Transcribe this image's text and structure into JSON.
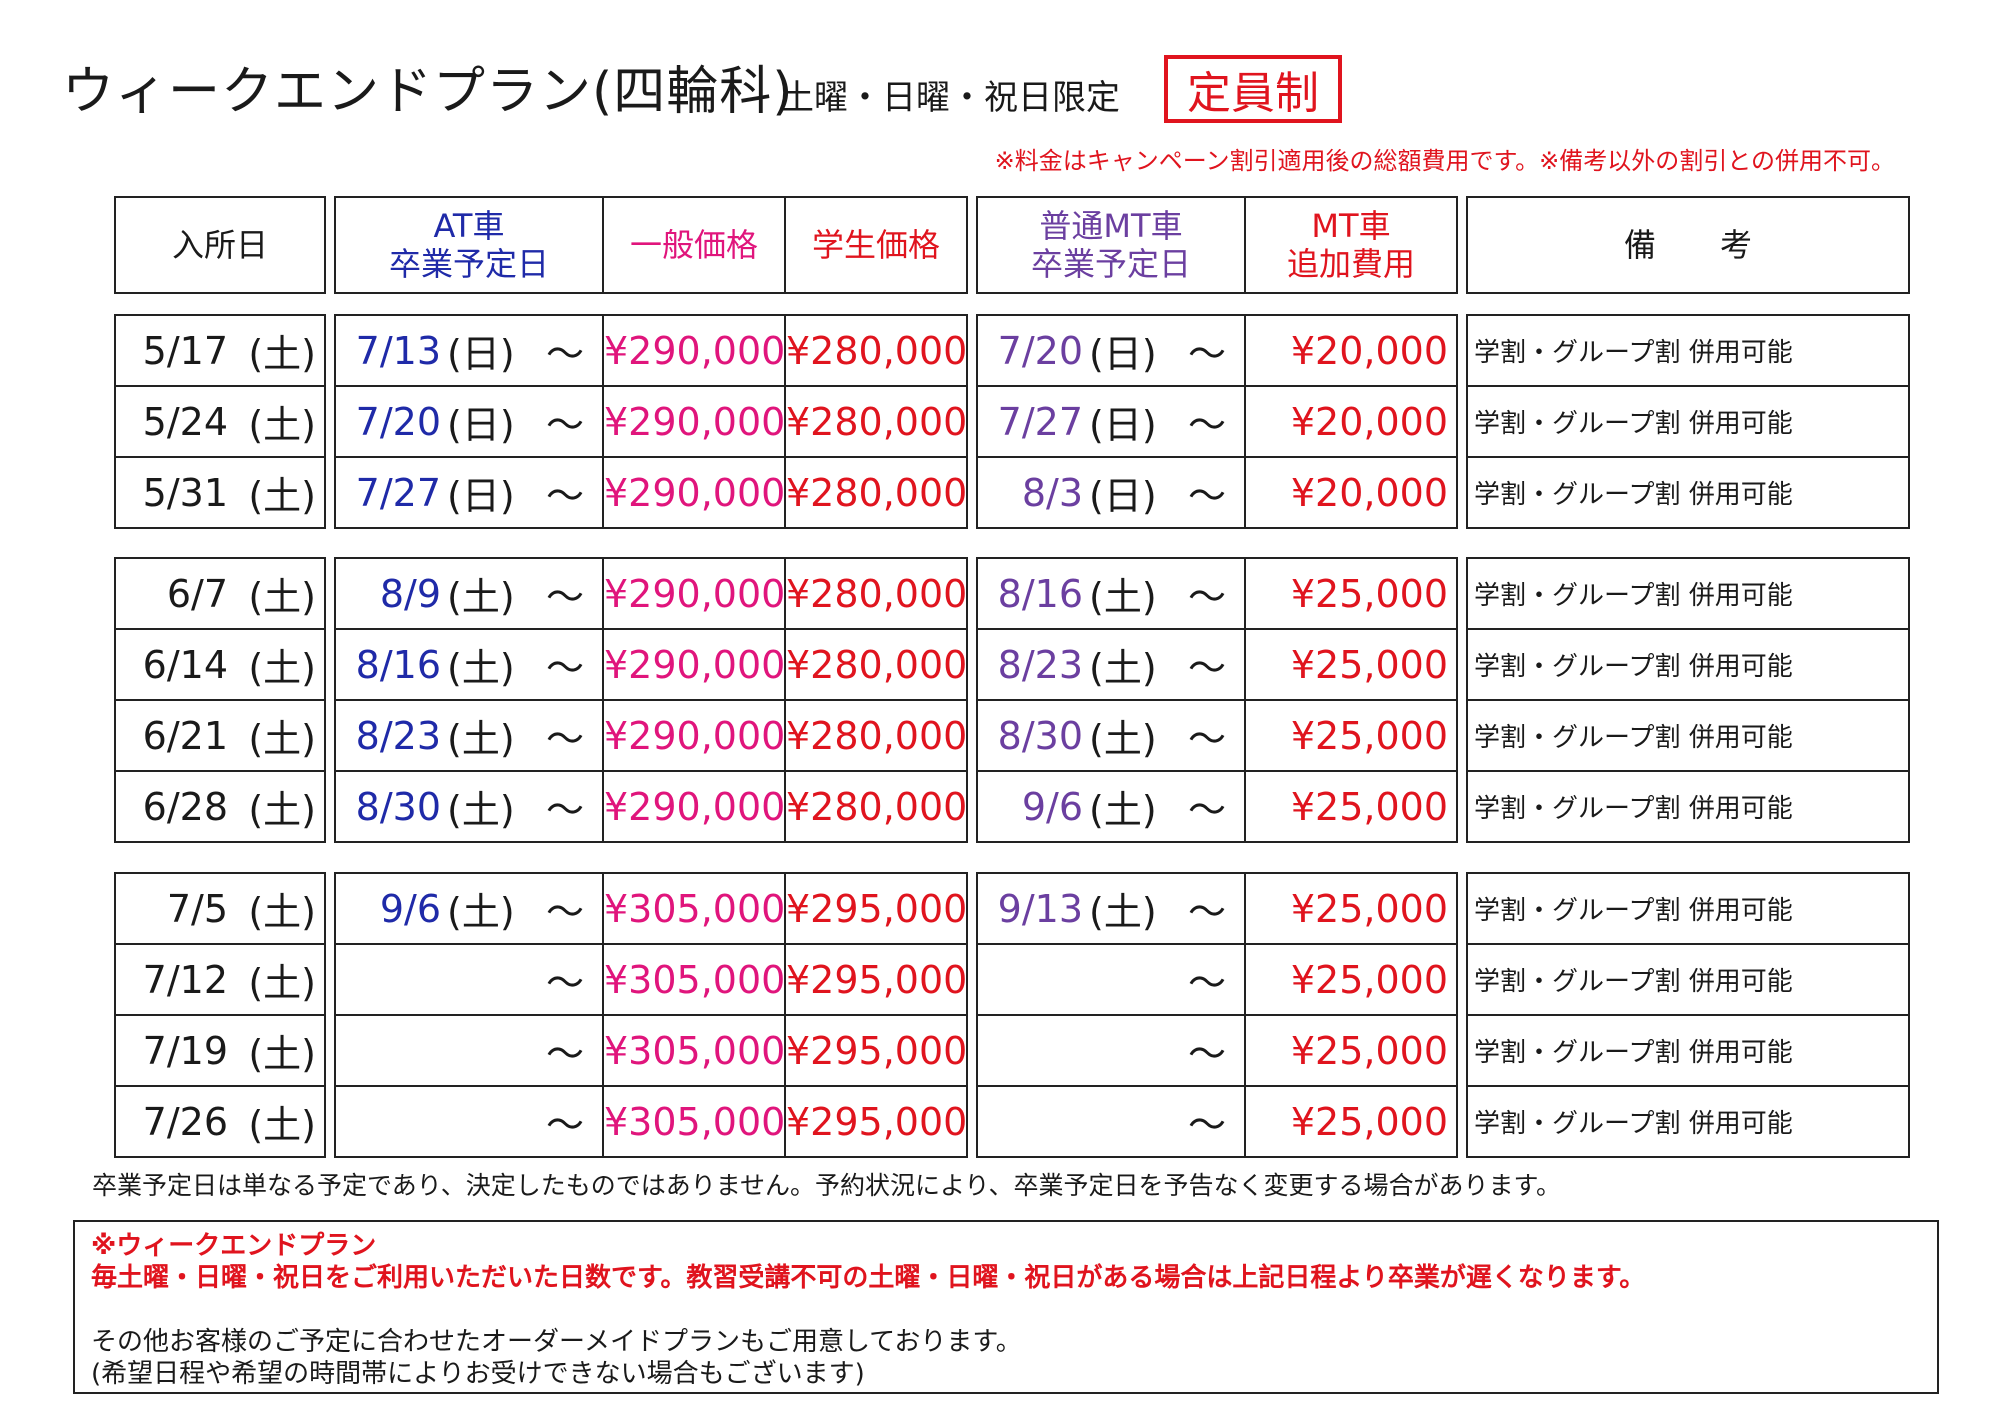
{
  "header": {
    "title": "ウィークエンドプラン(四輪科)",
    "subtitle": "土曜・日曜・祝日限定",
    "capacity_label": "定員制",
    "price_note": "※料金はキャンペーン割引適用後の総額費用です。※備考以外の割引との併用不可。"
  },
  "columns": {
    "entry": "入所日",
    "at_line1": "AT車",
    "at_line2": "卒業予定日",
    "general_price": "一般価格",
    "student_price": "学生価格",
    "mt_line1": "普通MT車",
    "mt_line2": "卒業予定日",
    "mtfee_line1": "MT車",
    "mtfee_line2": "追加費用",
    "remarks": "備　　考"
  },
  "rows": [
    {
      "entry": "5/17",
      "entry_dow": "(土)",
      "at": "7/13",
      "at_dow": "(日)",
      "tilde": "～",
      "general": "¥290,000",
      "student": "¥280,000",
      "mt": "7/20",
      "mt_dow": "(日)",
      "mt_fee": "¥20,000",
      "remark": "学割・グループ割 併用可能"
    },
    {
      "entry": "5/24",
      "entry_dow": "(土)",
      "at": "7/20",
      "at_dow": "(日)",
      "tilde": "～",
      "general": "¥290,000",
      "student": "¥280,000",
      "mt": "7/27",
      "mt_dow": "(日)",
      "mt_fee": "¥20,000",
      "remark": "学割・グループ割 併用可能"
    },
    {
      "entry": "5/31",
      "entry_dow": "(土)",
      "at": "7/27",
      "at_dow": "(日)",
      "tilde": "～",
      "general": "¥290,000",
      "student": "¥280,000",
      "mt": "8/3",
      "mt_dow": "(日)",
      "mt_fee": "¥20,000",
      "remark": "学割・グループ割 併用可能"
    },
    {
      "entry": "6/7",
      "entry_dow": "(土)",
      "at": "8/9",
      "at_dow": "(土)",
      "tilde": "～",
      "general": "¥290,000",
      "student": "¥280,000",
      "mt": "8/16",
      "mt_dow": "(土)",
      "mt_fee": "¥25,000",
      "remark": "学割・グループ割 併用可能"
    },
    {
      "entry": "6/14",
      "entry_dow": "(土)",
      "at": "8/16",
      "at_dow": "(土)",
      "tilde": "～",
      "general": "¥290,000",
      "student": "¥280,000",
      "mt": "8/23",
      "mt_dow": "(土)",
      "mt_fee": "¥25,000",
      "remark": "学割・グループ割 併用可能"
    },
    {
      "entry": "6/21",
      "entry_dow": "(土)",
      "at": "8/23",
      "at_dow": "(土)",
      "tilde": "～",
      "general": "¥290,000",
      "student": "¥280,000",
      "mt": "8/30",
      "mt_dow": "(土)",
      "mt_fee": "¥25,000",
      "remark": "学割・グループ割 併用可能"
    },
    {
      "entry": "6/28",
      "entry_dow": "(土)",
      "at": "8/30",
      "at_dow": "(土)",
      "tilde": "～",
      "general": "¥290,000",
      "student": "¥280,000",
      "mt": "9/6",
      "mt_dow": "(土)",
      "mt_fee": "¥25,000",
      "remark": "学割・グループ割 併用可能"
    },
    {
      "entry": "7/5",
      "entry_dow": "(土)",
      "at": "9/6",
      "at_dow": "(土)",
      "tilde": "～",
      "general": "¥305,000",
      "student": "¥295,000",
      "mt": "9/13",
      "mt_dow": "(土)",
      "mt_fee": "¥25,000",
      "remark": "学割・グループ割 併用可能"
    },
    {
      "entry": "7/12",
      "entry_dow": "(土)",
      "at": "",
      "at_dow": "",
      "tilde": "～",
      "general": "¥305,000",
      "student": "¥295,000",
      "mt": "",
      "mt_dow": "",
      "mt_fee": "¥25,000",
      "remark": "学割・グループ割 併用可能"
    },
    {
      "entry": "7/19",
      "entry_dow": "(土)",
      "at": "",
      "at_dow": "",
      "tilde": "～",
      "general": "¥305,000",
      "student": "¥295,000",
      "mt": "",
      "mt_dow": "",
      "mt_fee": "¥25,000",
      "remark": "学割・グループ割 併用可能"
    },
    {
      "entry": "7/26",
      "entry_dow": "(土)",
      "at": "",
      "at_dow": "",
      "tilde": "～",
      "general": "¥305,000",
      "student": "¥295,000",
      "mt": "",
      "mt_dow": "",
      "mt_fee": "¥25,000",
      "remark": "学割・グループ割 併用可能"
    }
  ],
  "footer": {
    "disclaimer": "卒業予定日は単なる予定であり、決定したものではありません。予約状況により、卒業予定日を予告なく変更する場合があります。",
    "plan_title": "※ウィークエンドプラン",
    "plan_detail": "毎土曜・日曜・祝日をご利用いただいた日数です。教習受講不可の土曜・日曜・祝日がある場合は上記日程より卒業が遅くなります。",
    "order_made": "その他お客様のご予定に合わせたオーダーメイドプランもご用意しております。",
    "order_made_note": "(希望日程や希望の時間帯によりお受けできない場合もございます)"
  },
  "colors": {
    "red": "#e0141e",
    "pink": "#e0157c",
    "blue": "#1f2aa8",
    "purple": "#6b3fa0"
  }
}
